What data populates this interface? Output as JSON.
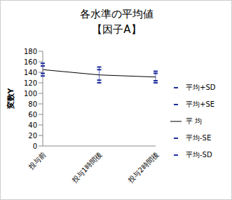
{
  "chart_data": {
    "type": "line",
    "title": "各水準の平均値",
    "subtitle": "【因子A】",
    "y_label": "変数Y",
    "categories": [
      "投与前",
      "投与1時間後",
      "投与2時間後"
    ],
    "series": [
      {
        "name": "平均+SD",
        "color": "#1f2fa0",
        "marker": "dash",
        "line_style": "none",
        "values": [
          157,
          150,
          142
        ]
      },
      {
        "name": "平均+SE",
        "color": "#1f2fa0",
        "marker": "dash",
        "line_style": "none",
        "values": [
          152,
          145,
          138
        ]
      },
      {
        "name": "平 均",
        "color": "#000000",
        "marker": "none",
        "line_style": "solid",
        "values": [
          145,
          135,
          131
        ]
      },
      {
        "name": "平均-SE",
        "color": "#1f2fa0",
        "marker": "dash",
        "line_style": "none",
        "values": [
          138,
          125,
          124
        ]
      },
      {
        "name": "平均-SD",
        "color": "#1f2fa0",
        "marker": "dash",
        "line_style": "none",
        "values": [
          133,
          120,
          120
        ]
      }
    ],
    "ylim": [
      0,
      180
    ],
    "yticks": [
      0,
      20,
      40,
      60,
      80,
      100,
      120,
      140,
      160,
      180
    ],
    "grid": false
  }
}
